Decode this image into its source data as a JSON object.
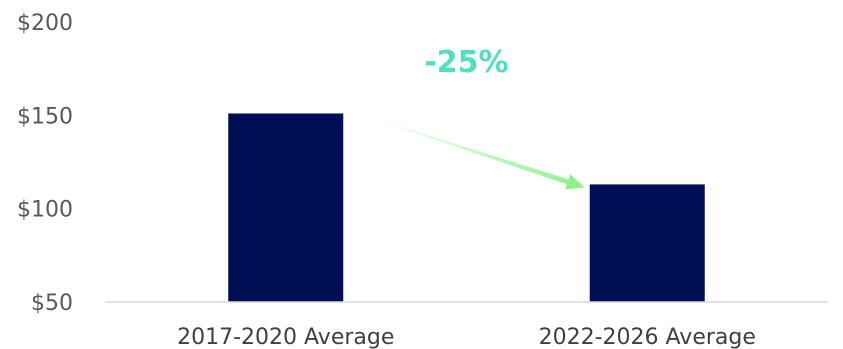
{
  "chart_data": {
    "type": "bar",
    "categories": [
      "2017-2020 Average",
      "2022-2026 Average"
    ],
    "values": [
      151,
      113
    ],
    "ylim": [
      50,
      200
    ],
    "yticks": [
      50,
      100,
      150,
      200
    ],
    "ytick_labels": [
      "$50",
      "$100",
      "$150",
      "$200"
    ],
    "grid": false,
    "annotation": "-25%"
  },
  "colors": {
    "bar": "#000F55",
    "annotation_text": "#4FE0C0",
    "arrow": "#8EF08A",
    "axis": "#D9D9D9"
  }
}
